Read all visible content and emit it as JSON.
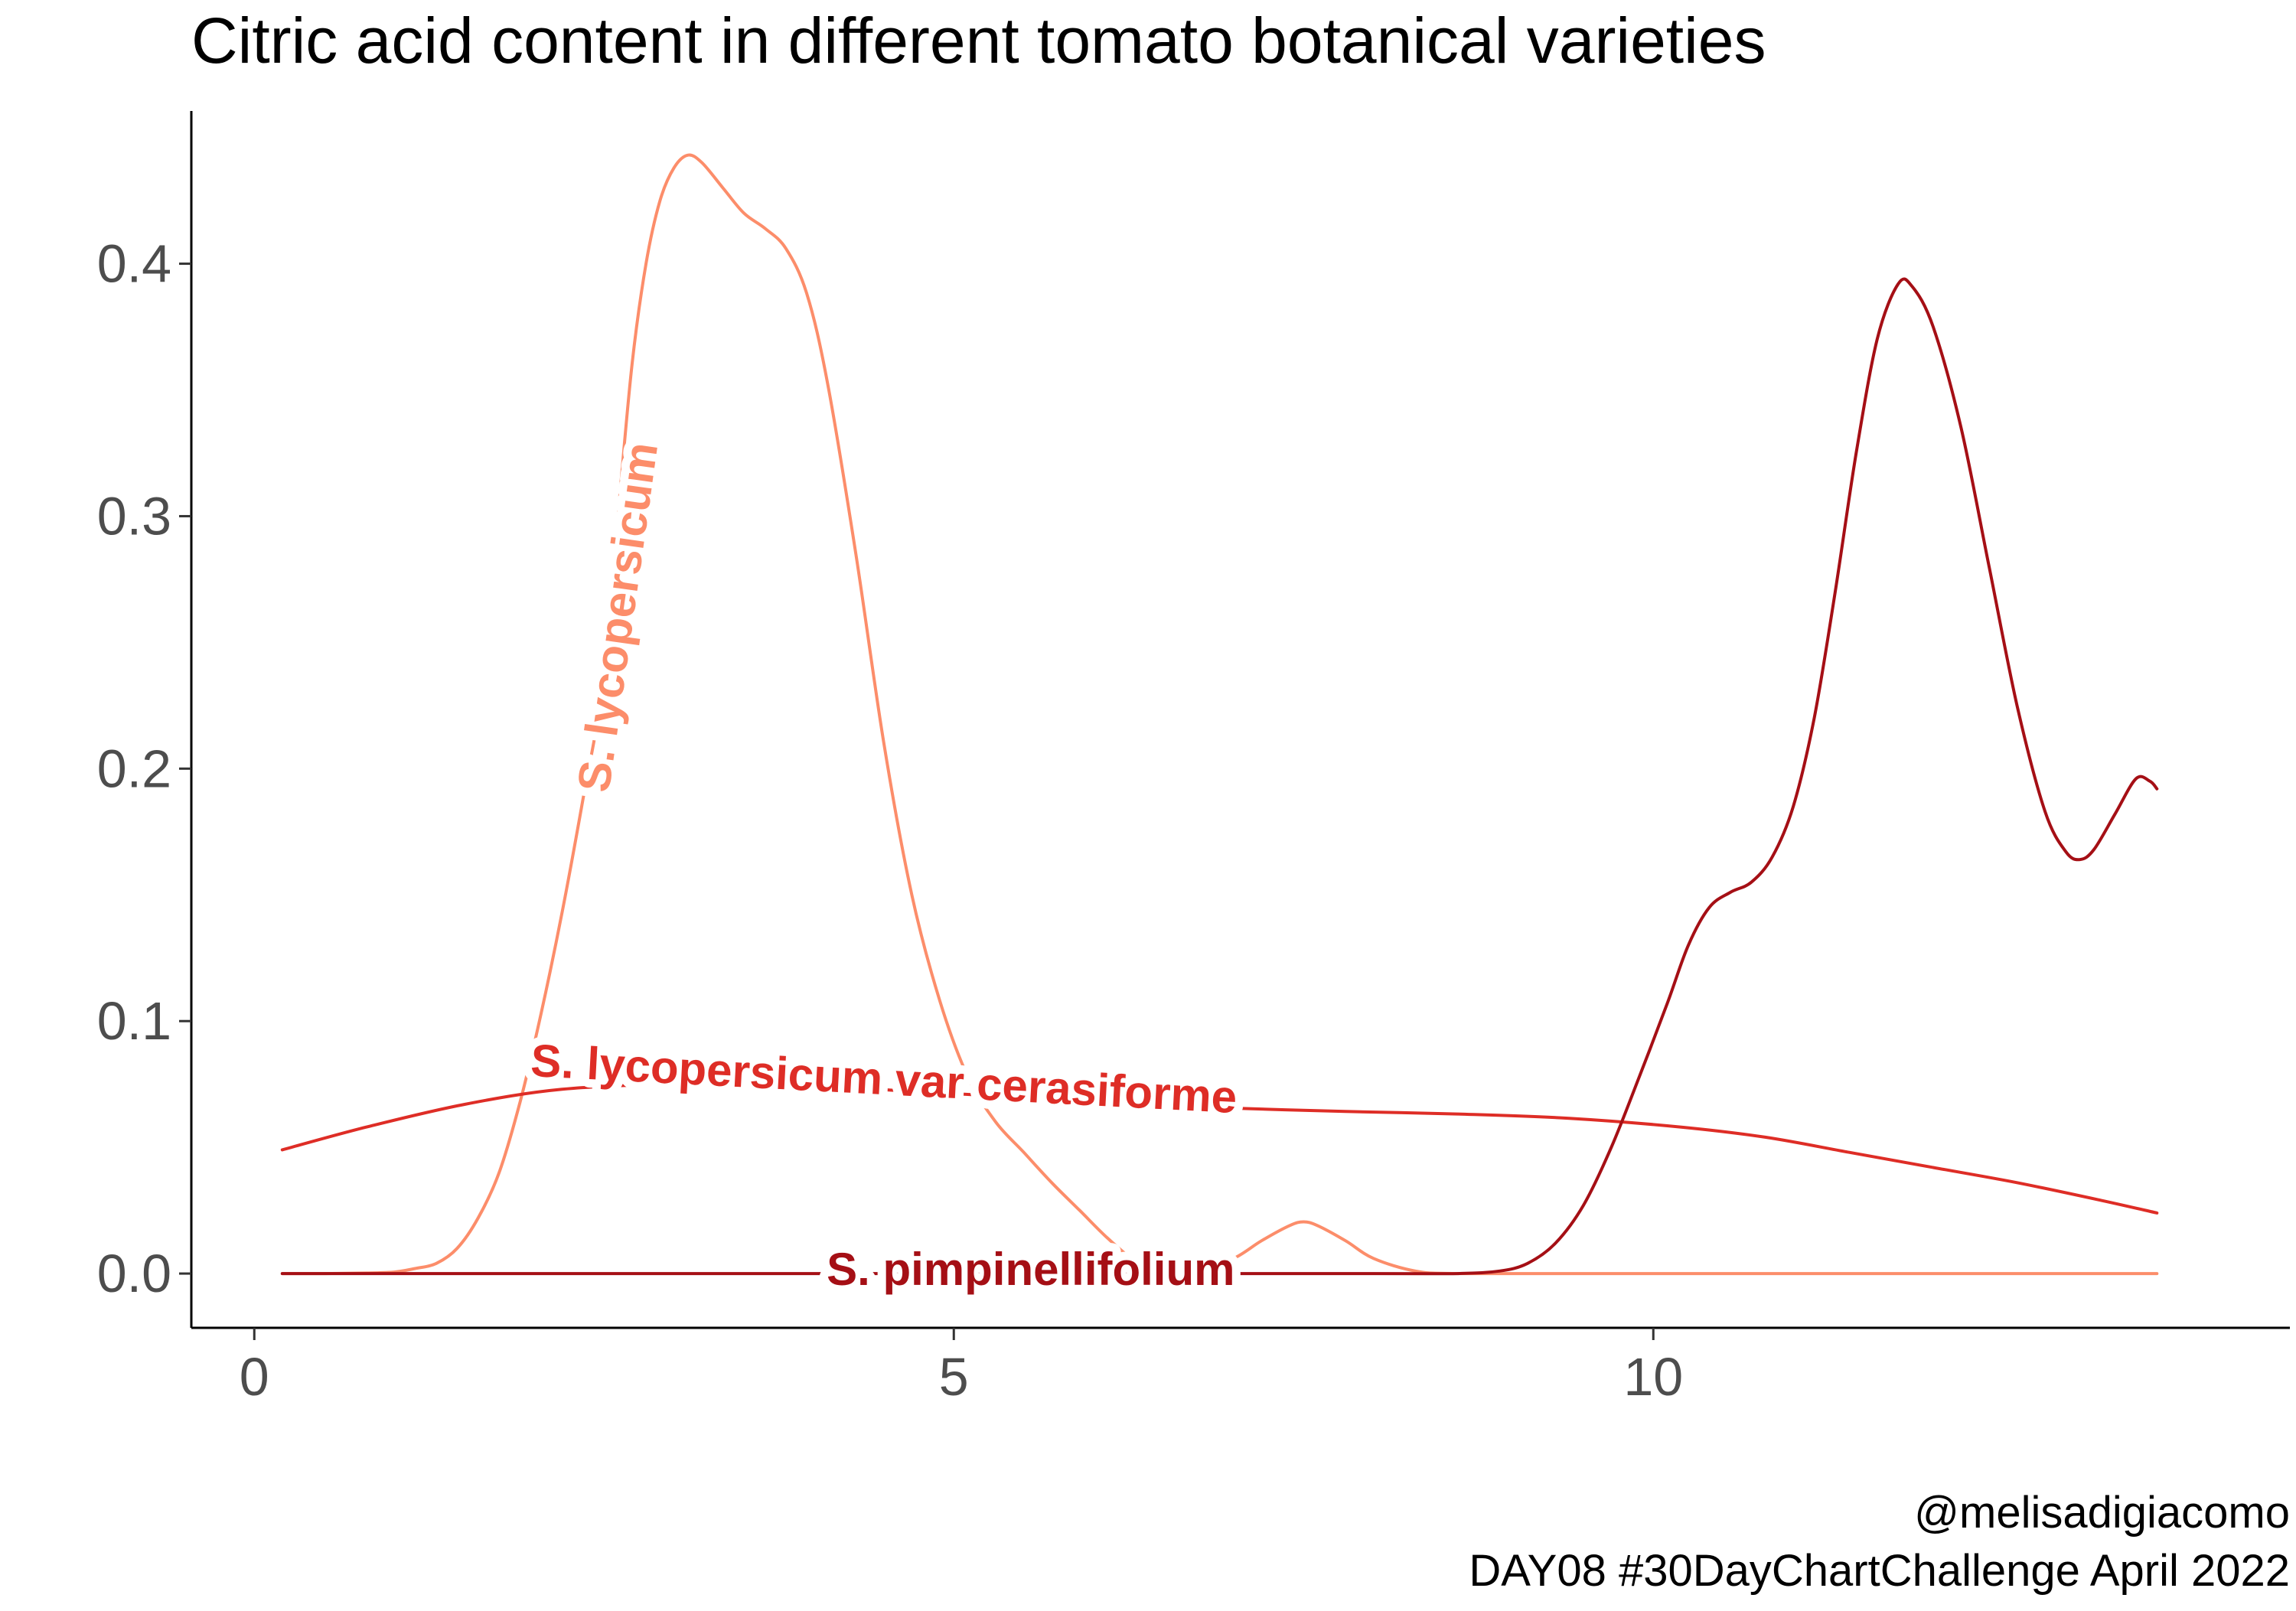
{
  "chart_data": {
    "type": "line",
    "title": "Citric acid content in different tomato botanical varieties",
    "xlabel": "",
    "ylabel": "",
    "xlim": [
      -0.45,
      14.55
    ],
    "ylim": [
      -0.0215,
      0.4605
    ],
    "x_ticks": [
      0,
      5,
      10
    ],
    "x_tick_labels": [
      "0",
      "5",
      "10"
    ],
    "y_ticks": [
      0.0,
      0.1,
      0.2,
      0.3,
      0.4
    ],
    "y_tick_labels": [
      "0.0",
      "0.1",
      "0.2",
      "0.3",
      "0.4"
    ],
    "grid": false,
    "legend": "none (series labelled directly on lines)",
    "series": [
      {
        "name": "S. lycopersicum",
        "color": "#FC8D6A",
        "points": [
          [
            0.2,
            0.0
          ],
          [
            0.5,
            0.0
          ],
          [
            0.8,
            0.0002
          ],
          [
            1.0,
            0.0006
          ],
          [
            1.15,
            0.002
          ],
          [
            1.3,
            0.004
          ],
          [
            1.45,
            0.01
          ],
          [
            1.6,
            0.022
          ],
          [
            1.75,
            0.04
          ],
          [
            1.9,
            0.068
          ],
          [
            2.05,
            0.103
          ],
          [
            2.2,
            0.143
          ],
          [
            2.35,
            0.188
          ],
          [
            2.5,
            0.236
          ],
          [
            2.6,
            0.3
          ],
          [
            2.7,
            0.36
          ],
          [
            2.8,
            0.4
          ],
          [
            2.9,
            0.425
          ],
          [
            3.0,
            0.438
          ],
          [
            3.1,
            0.443
          ],
          [
            3.2,
            0.44
          ],
          [
            3.35,
            0.43
          ],
          [
            3.5,
            0.42
          ],
          [
            3.65,
            0.414
          ],
          [
            3.8,
            0.406
          ],
          [
            3.95,
            0.388
          ],
          [
            4.1,
            0.352
          ],
          [
            4.3,
            0.285
          ],
          [
            4.5,
            0.21
          ],
          [
            4.7,
            0.15
          ],
          [
            4.9,
            0.108
          ],
          [
            5.1,
            0.078
          ],
          [
            5.3,
            0.06
          ],
          [
            5.5,
            0.048
          ],
          [
            5.7,
            0.036
          ],
          [
            5.9,
            0.025
          ],
          [
            6.1,
            0.014
          ],
          [
            6.3,
            0.005
          ],
          [
            6.5,
            0.001
          ],
          [
            6.75,
            0.0015
          ],
          [
            7.0,
            0.006
          ],
          [
            7.2,
            0.013
          ],
          [
            7.4,
            0.019
          ],
          [
            7.5,
            0.0205
          ],
          [
            7.6,
            0.019
          ],
          [
            7.8,
            0.013
          ],
          [
            8.0,
            0.006
          ],
          [
            8.3,
            0.001
          ],
          [
            8.6,
            0.0
          ],
          [
            9.5,
            0.0
          ],
          [
            11.0,
            0.0
          ],
          [
            12.5,
            0.0
          ],
          [
            13.6,
            0.0
          ]
        ]
      },
      {
        "name": "S. lycopersicum var cerasiforme",
        "color": "#DE2D26",
        "points": [
          [
            0.2,
            0.049
          ],
          [
            0.8,
            0.058
          ],
          [
            1.5,
            0.067
          ],
          [
            2.2,
            0.073
          ],
          [
            3.0,
            0.075
          ],
          [
            3.8,
            0.0745
          ],
          [
            4.6,
            0.0725
          ],
          [
            5.4,
            0.07
          ],
          [
            6.2,
            0.0675
          ],
          [
            7.0,
            0.0655
          ],
          [
            7.8,
            0.0642
          ],
          [
            8.6,
            0.0632
          ],
          [
            9.4,
            0.0615
          ],
          [
            10.2,
            0.058
          ],
          [
            10.8,
            0.054
          ],
          [
            11.4,
            0.048
          ],
          [
            12.0,
            0.042
          ],
          [
            12.6,
            0.036
          ],
          [
            13.2,
            0.029
          ],
          [
            13.6,
            0.024
          ]
        ]
      },
      {
        "name": "S. pimpinellifolium",
        "color": "#A50F15",
        "points": [
          [
            0.2,
            0.0
          ],
          [
            2.0,
            0.0
          ],
          [
            4.0,
            0.0
          ],
          [
            6.0,
            0.0
          ],
          [
            8.0,
            0.0
          ],
          [
            8.6,
            0.0
          ],
          [
            8.9,
            0.001
          ],
          [
            9.1,
            0.004
          ],
          [
            9.3,
            0.012
          ],
          [
            9.5,
            0.027
          ],
          [
            9.7,
            0.05
          ],
          [
            9.9,
            0.078
          ],
          [
            10.1,
            0.107
          ],
          [
            10.25,
            0.13
          ],
          [
            10.4,
            0.145
          ],
          [
            10.55,
            0.151
          ],
          [
            10.7,
            0.155
          ],
          [
            10.85,
            0.165
          ],
          [
            11.0,
            0.185
          ],
          [
            11.15,
            0.22
          ],
          [
            11.3,
            0.27
          ],
          [
            11.45,
            0.325
          ],
          [
            11.6,
            0.37
          ],
          [
            11.75,
            0.392
          ],
          [
            11.85,
            0.391
          ],
          [
            12.0,
            0.375
          ],
          [
            12.2,
            0.335
          ],
          [
            12.4,
            0.28
          ],
          [
            12.6,
            0.225
          ],
          [
            12.8,
            0.183
          ],
          [
            12.95,
            0.167
          ],
          [
            13.05,
            0.164
          ],
          [
            13.15,
            0.168
          ],
          [
            13.3,
            0.182
          ],
          [
            13.45,
            0.196
          ],
          [
            13.55,
            0.195
          ],
          [
            13.6,
            0.192
          ]
        ]
      }
    ],
    "line_labels": [
      {
        "text": "S. lycopersicum",
        "series": "S. lycopersicum",
        "x": 2.6,
        "y": 0.26,
        "rotated": true
      },
      {
        "text": "S. lycopersicum var cerasiforme",
        "series": "S. lycopersicum var cerasiforme",
        "x": 4.5,
        "y": 0.077
      },
      {
        "text": "S. pimpinellifolium",
        "series": "S. pimpinellifolium",
        "x": 5.55,
        "y": 0.0015
      }
    ],
    "caption": [
      "@melisadigiacomo",
      "DAY08 #30DayChartChallenge April 2022"
    ]
  }
}
